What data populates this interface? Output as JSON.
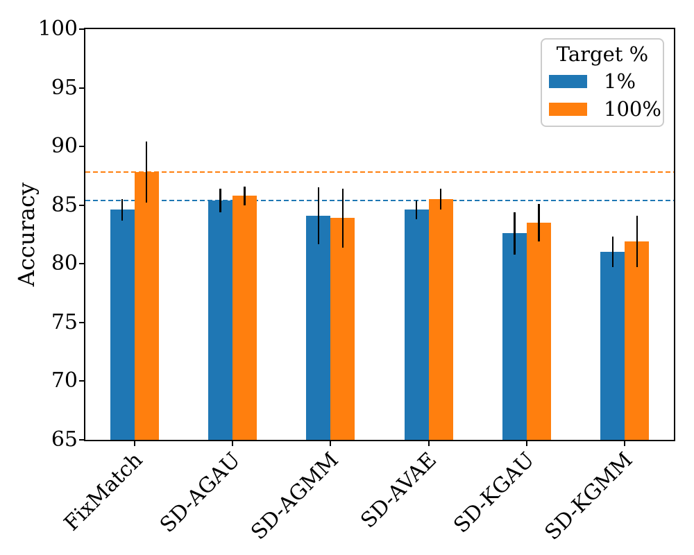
{
  "figure": {
    "ylabel": "Accuracy",
    "colors": {
      "blue": "#1f77b4",
      "orange": "#ff7f0e",
      "axis": "#000000",
      "legend_border": "#cccccc"
    }
  },
  "chart_data": {
    "type": "bar",
    "title": "",
    "xlabel": "",
    "ylabel": "Accuracy",
    "categories": [
      "FixMatch",
      "SD-AGAU",
      "SD-AGMM",
      "SD-AVAE",
      "SD-KGAU",
      "SD-KGMM"
    ],
    "series": [
      {
        "name": "1%",
        "color": "#1f77b4",
        "values": [
          84.6,
          85.4,
          84.1,
          84.6,
          82.6,
          81.0
        ],
        "yerr": [
          0.9,
          1.0,
          2.4,
          0.8,
          1.8,
          1.3
        ]
      },
      {
        "name": "100%",
        "color": "#ff7f0e",
        "values": [
          87.8,
          85.8,
          83.9,
          85.5,
          83.5,
          81.9
        ],
        "yerr": [
          2.6,
          0.8,
          2.5,
          0.9,
          1.6,
          2.2
        ]
      }
    ],
    "reference_lines": [
      {
        "value": 85.4,
        "color": "#1f77b4",
        "style": "dashed"
      },
      {
        "value": 87.8,
        "color": "#ff7f0e",
        "style": "dashed"
      }
    ],
    "ylim": [
      65,
      100
    ],
    "yticks": [
      65,
      70,
      75,
      80,
      85,
      90,
      95,
      100
    ],
    "grid": false,
    "error_bar_color": "#000000",
    "legend": {
      "title": "Target %",
      "position": "upper right",
      "items": [
        {
          "label": "1%",
          "color": "#1f77b4"
        },
        {
          "label": "100%",
          "color": "#ff7f0e"
        }
      ]
    }
  }
}
